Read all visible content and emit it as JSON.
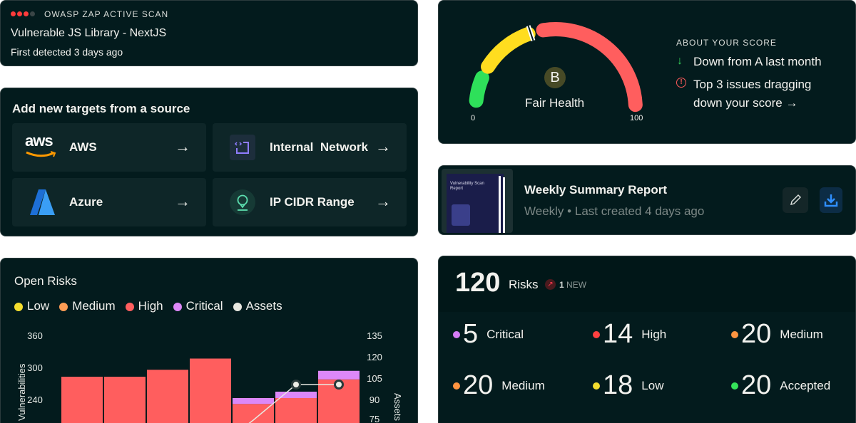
{
  "scan_card": {
    "source": "OWASP ZAP ACTIVE SCAN",
    "severity_dots": [
      "#ff3b3b",
      "#ff3b3b",
      "#ff3b3b",
      "#3a4546"
    ],
    "title": "Vulnerable JS Library - NextJS",
    "detected": "First detected 3 days ago"
  },
  "targets": {
    "title": "Add new targets from a source",
    "items": [
      {
        "label": "AWS",
        "icon": "aws-logo"
      },
      {
        "label": "Internal  Network",
        "icon": "code-bracket-icon"
      },
      {
        "label": "Azure",
        "icon": "azure-logo"
      },
      {
        "label": "IP CIDR Range",
        "icon": "location-pin-icon"
      }
    ],
    "arrow": "→"
  },
  "score": {
    "grade": "B",
    "label": "Fair Health",
    "min": "0",
    "max": "100",
    "marker_value": 42,
    "about_title": "ABOUT YOUR SCORE",
    "trend": "Down from A last month",
    "issues_line1": "Top 3 issues dragging",
    "issues_line2": "down your score →",
    "colors": {
      "low": "#2ee05a",
      "mid": "#ffdd1f",
      "high": "#ff5e5e"
    }
  },
  "report": {
    "thumb_title": "Vulnerability Scan Report",
    "title": "Weekly Summary Report",
    "frequency": "Weekly",
    "separator": "•",
    "last_created": "Last created 4 days ago"
  },
  "risks": {
    "total": "120",
    "label": "Risks",
    "new_count": "1",
    "new_label": "NEW",
    "stats": [
      {
        "value": "5",
        "name": "Critical",
        "color": "#d57cf5"
      },
      {
        "value": "14",
        "name": "High",
        "color": "#ff4040"
      },
      {
        "value": "20",
        "name": "Medium",
        "color": "#ff9440"
      },
      {
        "value": "20",
        "name": "Medium",
        "color": "#ff9440"
      },
      {
        "value": "18",
        "name": "Low",
        "color": "#f2dc2e"
      },
      {
        "value": "20",
        "name": "Accepted",
        "color": "#35e35a"
      }
    ]
  },
  "chart_data": {
    "type": "bar",
    "title": "Open Risks",
    "legend": [
      {
        "name": "Low",
        "color": "#f5de2e"
      },
      {
        "name": "Medium",
        "color": "#ff9d55"
      },
      {
        "name": "High",
        "color": "#ff5e5e"
      },
      {
        "name": "Critical",
        "color": "#dd88f8"
      },
      {
        "name": "Assets",
        "color": "#e8e8e0"
      }
    ],
    "ylabel": "Vulnerabilities",
    "y2label": "Assets",
    "yticks": [
      "360",
      "300",
      "240"
    ],
    "y2ticks": [
      "135",
      "120",
      "105",
      "90",
      "75"
    ],
    "ylim_visible": [
      220,
      360
    ],
    "y2lim_visible": [
      75,
      135
    ],
    "series": [
      {
        "name": "High",
        "values": [
          284,
          284,
          297,
          318,
          233,
          244,
          279
        ]
      },
      {
        "name": "Critical",
        "values": [
          0,
          0,
          0,
          0,
          11,
          12,
          16
        ]
      },
      {
        "name": "Assets",
        "type": "line",
        "axis": "right",
        "values": [
          null,
          null,
          null,
          53,
          76,
          101,
          101
        ]
      }
    ]
  }
}
